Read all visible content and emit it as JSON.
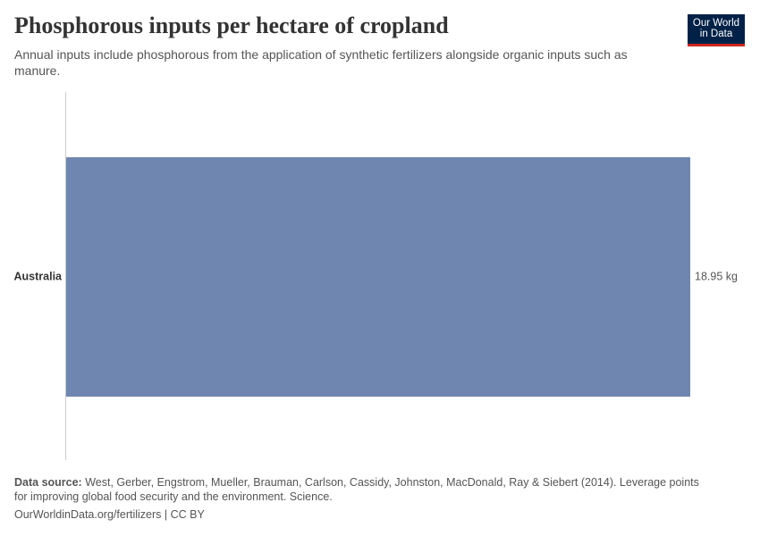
{
  "chart_data": {
    "type": "bar",
    "orientation": "horizontal",
    "title": "Phosphorous inputs per hectare of cropland",
    "subtitle": "Annual inputs include phosphorous from the application of synthetic fertilizers alongside organic inputs such as manure.",
    "categories": [
      "Australia"
    ],
    "values": [
      18.95
    ],
    "value_labels": [
      "18.95 kg"
    ],
    "color": "#6f87b0",
    "source_label": "Data source:",
    "source_text": "West, Gerber, Engstrom, Mueller, Brauman, Carlson, Cassidy, Johnston, MacDonald, Ray & Siebert (2014). Leverage points for improving global food security and the environment. Science.",
    "footer": "OurWorldinData.org/fertilizers | CC BY",
    "logo": [
      "Our World",
      "in Data"
    ]
  }
}
